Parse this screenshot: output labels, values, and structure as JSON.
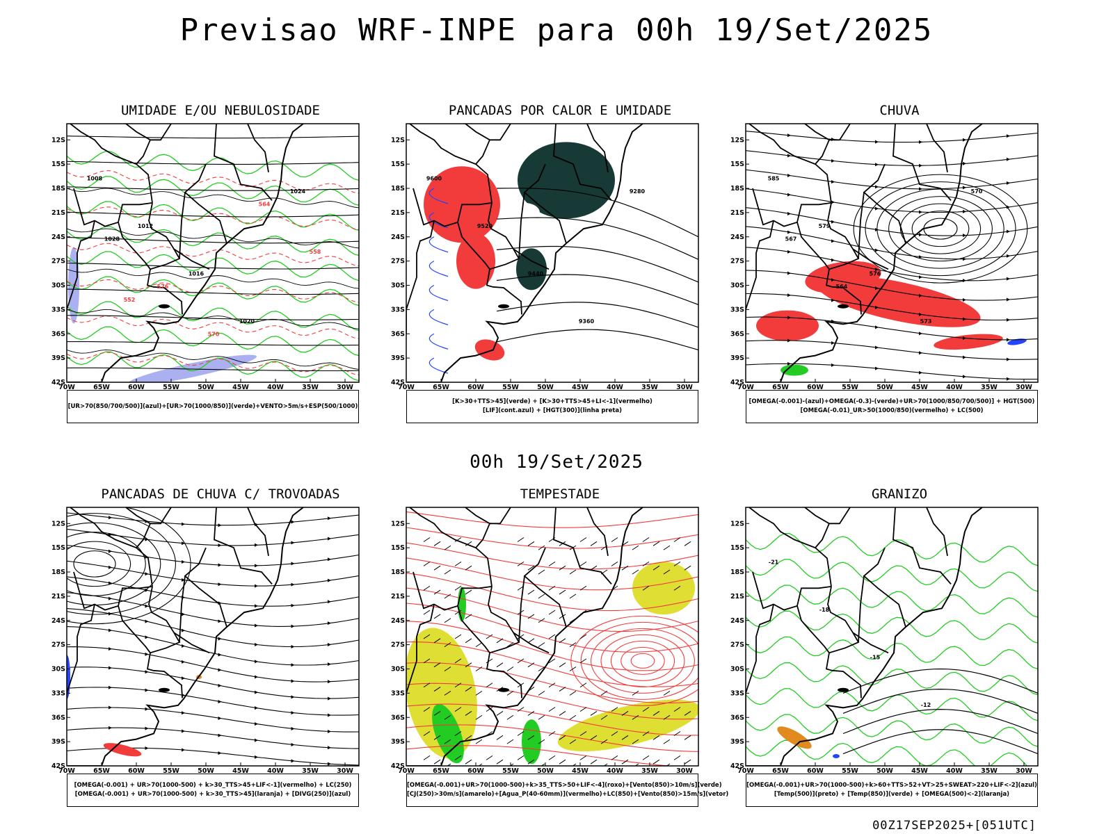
{
  "title": "Previsao WRF-INPE  para 00h 19/Set/2025",
  "mid_title": "00h 19/Set/2025",
  "run_stamp": "00Z17SEP2025+[051UTC]",
  "lat_labels": [
    "12S",
    "15S",
    "18S",
    "21S",
    "24S",
    "27S",
    "30S",
    "33S",
    "36S",
    "39S",
    "42S"
  ],
  "lon_labels": [
    "70W",
    "65W",
    "60W",
    "55W",
    "50W",
    "45W",
    "40W",
    "35W",
    "30W"
  ],
  "colors": {
    "red": "#f23c3c",
    "green": "#22cc22",
    "blue": "#2244ff",
    "lavender": "#aab0f0",
    "darkgreen": "#173a36",
    "yellow": "#dede33",
    "orange": "#e08a20",
    "black": "#000000"
  },
  "panels": [
    {
      "id": "umidade",
      "title": "UMIDADE E/OU NEBULOSIDADE",
      "legend": [
        "[UR>70(850/700/500)](azul)+[UR>70(1000/850)](verde)+VENTO>5m/s+ESP(500/1000)"
      ],
      "contour_labels": [
        "1008",
        "1012",
        "1016",
        "1020",
        "1024",
        "1028",
        "576",
        "570",
        "564",
        "558",
        "552"
      ]
    },
    {
      "id": "pancadas-calor",
      "title": "PANCADAS POR CALOR E UMIDADE",
      "legend": [
        "[K>30+TTS>45](verde) + [K>30+TTS>45+LI<-1](vermelho)",
        "[LIF](cont.azul) + [HGT(300)](linha preta)"
      ],
      "contour_labels": [
        "9600",
        "9520",
        "9440",
        "9360",
        "9280"
      ]
    },
    {
      "id": "chuva",
      "title": "CHUVA",
      "legend": [
        "[OMEGA(-0.001)-(azul)+OMEGA(-0.3)-(verde)+UR>70(1000/850/700/500)] + HGT(500)",
        "[OMEGA(-0.01)_UR>50(1000/850)(vermelho) + LC(500)"
      ],
      "contour_labels": [
        "585",
        "579",
        "576",
        "573",
        "570",
        "567",
        "564"
      ]
    },
    {
      "id": "pancadas-trovoadas",
      "title": "PANCADAS DE CHUVA C/ TROVOADAS",
      "legend": [
        "[OMEGA(-0.001) + UR>70(1000-500) + k>30_TTS>45+LIF<-1](vermelho) + LC(250)",
        "[OMEGA(-0.001) + UR>70(1000-500) + k>30_TTS>45](laranja) + [DIVG(250)](azul)"
      ],
      "contour_labels": []
    },
    {
      "id": "tempestade",
      "title": "TEMPESTADE",
      "legend": [
        "[OMEGA(-0.001)+UR>70(1000-500)+k>35_TTS>50+LIF<-4](roxo)+[Vento(850)>10m/s](verde)",
        "[CJ(250)>30m/s](amarelo)+[Agua_P(40-60mm)](vermelho)+LC(850)+[Vento(850)>15m/s](vetor)"
      ],
      "contour_labels": []
    },
    {
      "id": "granizo",
      "title": "GRANIZO",
      "legend": [
        "[OMEGA(-0.001)+UR>70(1000-500)+k>60+TTS>52+VT>25+SWEAT>220+LIF<-2](azul)",
        "[Temp(500)](preto) + [Temp(850)](verde) + [OMEGA(500)<-2](laranja)"
      ],
      "contour_labels": [
        "-21",
        "-18",
        "-15",
        "-12"
      ]
    }
  ]
}
